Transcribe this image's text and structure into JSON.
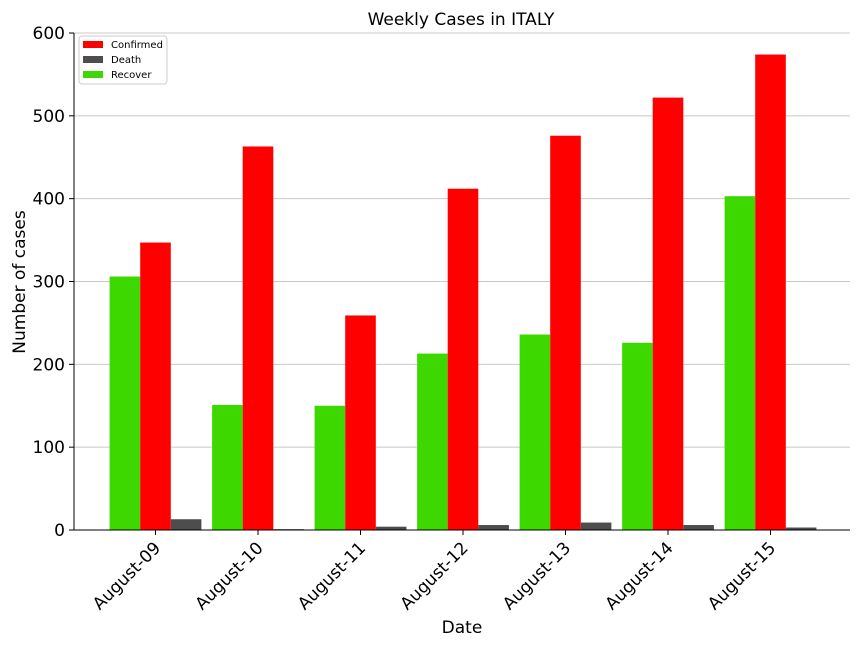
{
  "chart_data": {
    "type": "bar",
    "title": "Weekly Cases in ITALY",
    "xlabel": "Date",
    "ylabel": "Number of cases",
    "categories": [
      "August-09",
      "August-10",
      "August-11",
      "August-12",
      "August-13",
      "August-14",
      "August-15"
    ],
    "series": [
      {
        "name": "Recover",
        "color": "#3dd800",
        "values": [
          306,
          151,
          150,
          213,
          236,
          226,
          403
        ]
      },
      {
        "name": "Confirmed",
        "color": "#ff0000",
        "values": [
          347,
          463,
          259,
          412,
          476,
          522,
          574
        ]
      },
      {
        "name": "Death",
        "color": "#4d4d4d",
        "values": [
          13,
          1,
          4,
          6,
          9,
          6,
          3
        ]
      }
    ],
    "legend_order": [
      "Confirmed",
      "Death",
      "Recover"
    ],
    "legend_position": "top-left",
    "ylim": [
      0,
      600
    ],
    "yticks": [
      0,
      100,
      200,
      300,
      400,
      500,
      600
    ],
    "grid": "horizontal"
  }
}
